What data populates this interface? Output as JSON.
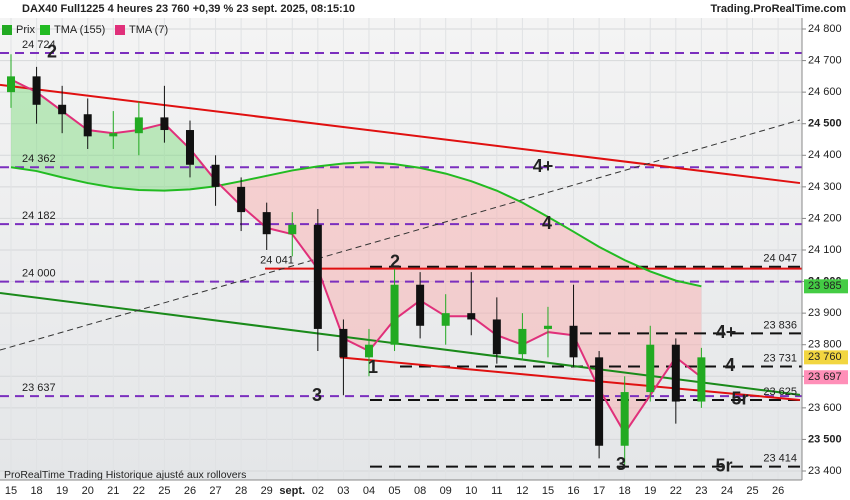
{
  "chart_data": {
    "type": "candlestick",
    "title": "DAX40 Full1225 4 heures 23 760 +0,39 % 23 sept. 2025, 08:15:10",
    "source": "Trading.ProRealTime.com",
    "footnote": "ProRealTime Trading  Historique ajusté aux rollovers",
    "categories": [
      "15",
      "18",
      "19",
      "20",
      "21",
      "22",
      "25",
      "26",
      "27",
      "28",
      "29",
      "sept.",
      "02",
      "03",
      "04",
      "05",
      "08",
      "09",
      "10",
      "11",
      "12",
      "15",
      "16",
      "17",
      "18",
      "19",
      "22",
      "23",
      "24",
      "25",
      "26"
    ],
    "ohlc": {
      "name": "Prix",
      "up_color": "#22aa22",
      "down_color": "#111111",
      "open": [
        24600,
        24650,
        24560,
        24530,
        24460,
        24470,
        24520,
        24480,
        24370,
        24300,
        24220,
        24150,
        24180,
        23850,
        23760,
        23800,
        23990,
        23860,
        23900,
        23880,
        23770,
        23850,
        23860,
        23760,
        23480,
        23650,
        23800,
        23620,
        null,
        null,
        null
      ],
      "high": [
        24720,
        24680,
        24620,
        24580,
        24540,
        24570,
        24620,
        24510,
        24400,
        24330,
        24250,
        24220,
        24230,
        23880,
        23850,
        24040,
        24030,
        23960,
        24030,
        23950,
        23900,
        23920,
        23990,
        23780,
        23700,
        23860,
        23820,
        23790,
        null,
        null,
        null
      ],
      "low": [
        24550,
        24500,
        24470,
        24420,
        24420,
        24400,
        24440,
        24330,
        24240,
        24160,
        24100,
        24080,
        23780,
        23640,
        23700,
        23780,
        23820,
        23800,
        23830,
        23740,
        23750,
        23760,
        23730,
        23440,
        23420,
        23620,
        23550,
        23600,
        null,
        null,
        null
      ],
      "close": [
        24650,
        24560,
        24530,
        24460,
        24470,
        24520,
        24480,
        24370,
        24300,
        24220,
        24150,
        24180,
        23850,
        23760,
        23800,
        23990,
        23860,
        23900,
        23880,
        23770,
        23850,
        23860,
        23760,
        23480,
        23650,
        23800,
        23620,
        23760,
        null,
        null,
        null
      ]
    },
    "series": [
      {
        "name": "TMA (155)",
        "color": "#22bb22",
        "values": [
          24362,
          24350,
          24330,
          24312,
          24298,
          24290,
          24288,
          24292,
          24302,
          24318,
          24335,
          24352,
          24365,
          24374,
          24378,
          24372,
          24360,
          24342,
          24318,
          24288,
          24250,
          24205,
          24158,
          24110,
          24068,
          24032,
          24003,
          23985,
          null,
          null,
          null
        ]
      },
      {
        "name": "TMA (7)",
        "color": "#e0307a",
        "values": [
          24640,
          24600,
          24540,
          24480,
          24470,
          24480,
          24500,
          24420,
          24320,
          24240,
          24170,
          24150,
          24040,
          23820,
          23780,
          23880,
          23940,
          23890,
          23890,
          23830,
          23800,
          23840,
          23830,
          23660,
          23520,
          23640,
          23760,
          23697,
          null,
          null,
          null
        ]
      }
    ],
    "ylim": [
      23400,
      24800
    ],
    "yticks": [
      {
        "value": 23400,
        "label": "23 400"
      },
      {
        "value": 23500,
        "label": "23 500"
      },
      {
        "value": 23600,
        "label": "23 600"
      },
      {
        "value": 23700,
        "label": "23 700"
      },
      {
        "value": 23800,
        "label": "23 800"
      },
      {
        "value": 23900,
        "label": "23 900"
      },
      {
        "value": 24000,
        "label": "24 000"
      },
      {
        "value": 24100,
        "label": "24 100"
      },
      {
        "value": 24200,
        "label": "24 200"
      },
      {
        "value": 24300,
        "label": "24 300"
      },
      {
        "value": 24400,
        "label": "24 400"
      },
      {
        "value": 24500,
        "label": "24 500"
      },
      {
        "value": 24600,
        "label": "24 600"
      },
      {
        "value": 24700,
        "label": "24 700"
      },
      {
        "value": 24800,
        "label": "24 800"
      }
    ],
    "grid": true,
    "purple_levels": [
      {
        "value": 24724,
        "label": "24 724",
        "tag": "2"
      },
      {
        "value": 24362,
        "label": "24 362",
        "tag": "4+"
      },
      {
        "value": 24182,
        "label": "24 182",
        "tag": "4"
      },
      {
        "value": 24000,
        "label": "24 000"
      },
      {
        "value": 23637,
        "label": "23 637",
        "tag": "3"
      }
    ],
    "purple_color": "#7b2fbe",
    "black_levels": [
      {
        "value": 24047,
        "label": "24 047",
        "tag": "2"
      },
      {
        "value": 23836,
        "label": "23 836",
        "tag": "4+"
      },
      {
        "value": 23731,
        "label": "23 731",
        "tag": "4"
      },
      {
        "value": 23625,
        "label": "23 625",
        "tag": "5r"
      },
      {
        "value": 23414,
        "label": "23 414",
        "tag": "5r"
      }
    ],
    "extra_tags": [
      "1",
      "3"
    ],
    "red_level": {
      "value": 24041,
      "label": "24 041",
      "color": "#e01010"
    },
    "trendlines": [
      {
        "color": "#e01010",
        "from": 24623,
        "to": 24312
      },
      {
        "color": "#1a8a1a",
        "from": 23964,
        "to": 23641
      },
      {
        "color": "#333333",
        "from": 23783,
        "to": 24512,
        "dashed": true
      },
      {
        "color": "#e01010",
        "from": 23760,
        "to": 23625
      }
    ],
    "price_flags": [
      {
        "value": 23985,
        "label": "23 985",
        "color": "#44cc44"
      },
      {
        "value": 23760,
        "label": "23 760",
        "color": "#f2d640"
      },
      {
        "value": 23697,
        "label": "23 697",
        "color": "#ff8fb8"
      }
    ]
  }
}
